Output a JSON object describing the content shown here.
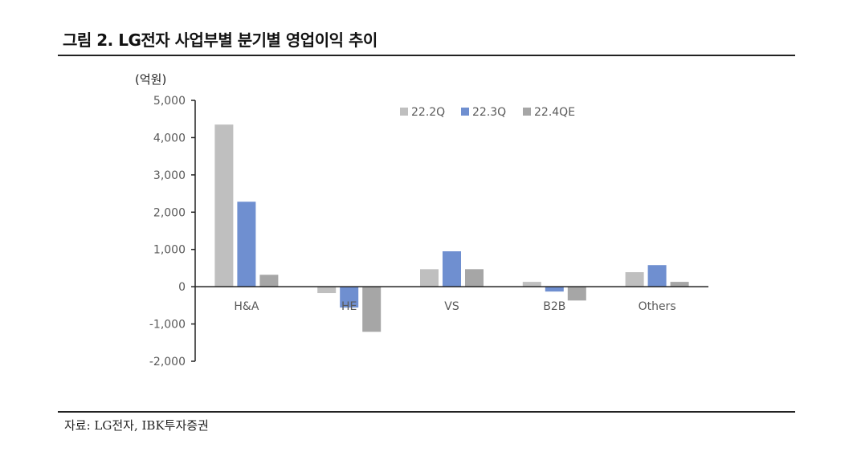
{
  "figure": {
    "title": "그림 2. LG전자 사업부별 분기별 영업이익 추이",
    "unit_label": "(억원)",
    "source": "자료: LG전자, IBK투자증권"
  },
  "colors": {
    "s22_2Q": "#bfbfbf",
    "s22_3Q": "#6f8fd0",
    "s22_4QE": "#a6a6a6",
    "axis": "#222222",
    "tick_text": "#595959"
  },
  "chart_data": {
    "type": "bar",
    "title": "LG전자 사업부별 분기별 영업이익 추이",
    "xlabel": "",
    "ylabel": "(억원)",
    "ylim": [
      -2000,
      5000
    ],
    "yticks": [
      5000,
      4000,
      3000,
      2000,
      1000,
      0,
      -1000,
      -2000
    ],
    "ytick_labels": [
      "5,000",
      "4,000",
      "3,000",
      "2,000",
      "1,000",
      "0",
      "-1,000",
      "-2,000"
    ],
    "grid": false,
    "legend_position": "top-right (inside)",
    "categories": [
      "H&A",
      "HE",
      "VS",
      "B2B",
      "Others"
    ],
    "series": [
      {
        "name": "22.2Q",
        "values": [
          4350,
          -170,
          470,
          130,
          390
        ]
      },
      {
        "name": "22.3Q",
        "values": [
          2280,
          -560,
          950,
          -130,
          580
        ]
      },
      {
        "name": "22.4QE",
        "values": [
          320,
          -1210,
          470,
          -370,
          130
        ]
      }
    ]
  }
}
